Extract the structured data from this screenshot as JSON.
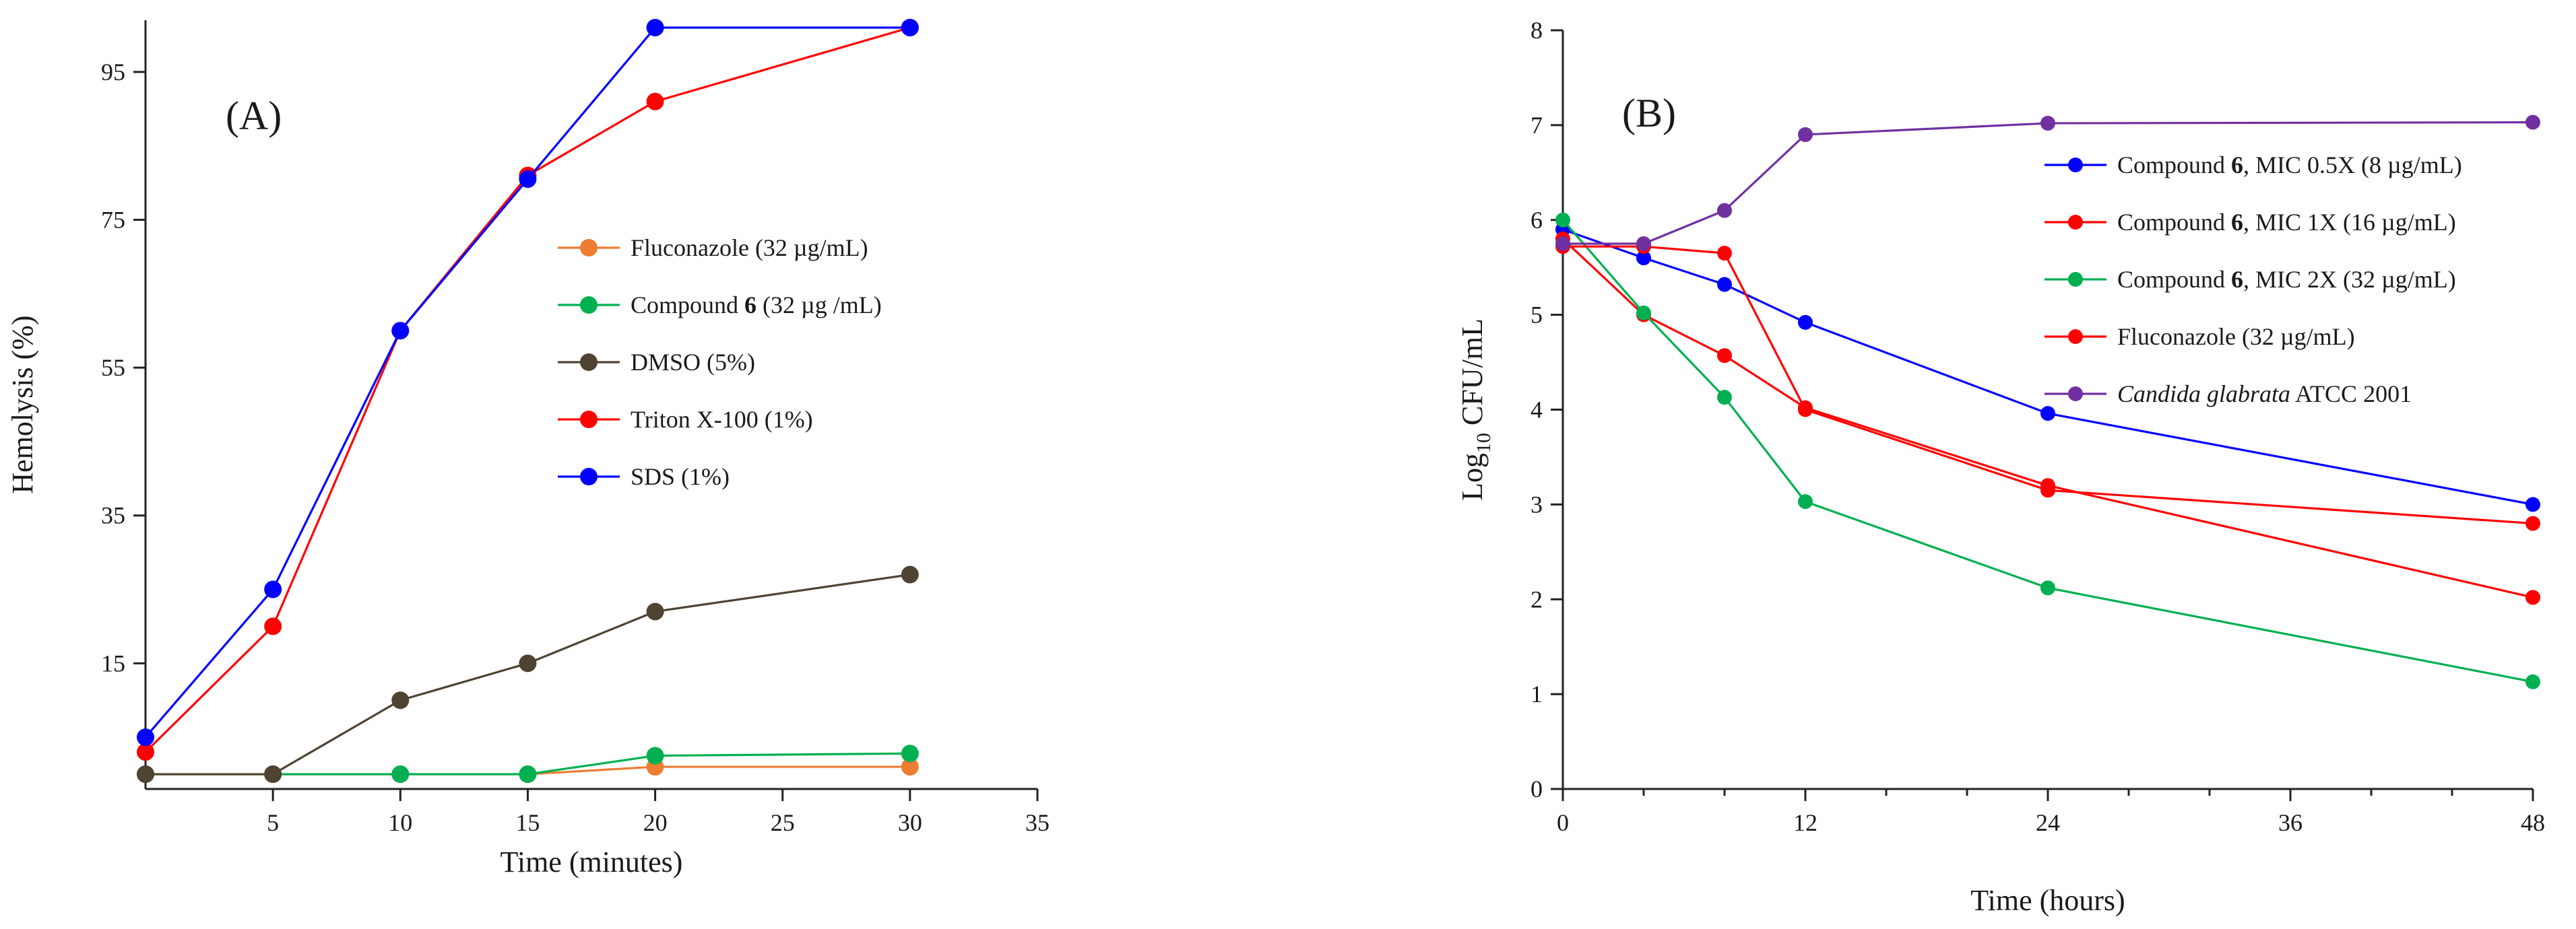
{
  "chart_data": [
    {
      "type": "line",
      "panel_label": "(A)",
      "xlabel": "Time (minutes)",
      "ylabel": "Hemolysis (%)",
      "xlim": [
        0,
        35
      ],
      "ylim": [
        -2,
        102
      ],
      "x_ticks": [
        5,
        10,
        15,
        20,
        25,
        30,
        35
      ],
      "y_ticks": [
        15,
        35,
        55,
        75,
        95
      ],
      "legend_position": "center-right",
      "series": [
        {
          "name": "Fluconazole (32 µg/mL)",
          "name_parts": [
            "Fluconazole (32 µg/mL)"
          ],
          "color": "#ED7D31",
          "x": [
            0,
            5,
            10,
            15,
            20,
            30
          ],
          "y": [
            0,
            0,
            0,
            0,
            1,
            1
          ]
        },
        {
          "name": "Compound 6 (32 µg /mL)",
          "name_parts": [
            "Compound ",
            "6",
            " (32 µg /mL)"
          ],
          "color": "#00B050",
          "x": [
            0,
            5,
            10,
            15,
            20,
            30
          ],
          "y": [
            0,
            0,
            0,
            0,
            2.5,
            2.8
          ]
        },
        {
          "name": "DMSO (5%)",
          "name_parts": [
            "DMSO (5%)"
          ],
          "color": "#4F4332",
          "x": [
            0,
            5,
            10,
            15,
            20,
            30
          ],
          "y": [
            0,
            0,
            10,
            15,
            22,
            27
          ]
        },
        {
          "name": "Triton X-100 (1%)",
          "name_parts": [
            "Triton X-100 (1%)"
          ],
          "color": "#FF0000",
          "x": [
            0,
            5,
            10,
            15,
            20,
            30
          ],
          "y": [
            3,
            20,
            60,
            81,
            91,
            101
          ]
        },
        {
          "name": "SDS (1%)",
          "name_parts": [
            "SDS (1%)"
          ],
          "color": "#0000FF",
          "x": [
            0,
            5,
            10,
            15,
            20,
            30
          ],
          "y": [
            5,
            25,
            60,
            80.5,
            101,
            101
          ]
        }
      ]
    },
    {
      "type": "line",
      "panel_label": "(B)",
      "xlabel": "Time (hours)",
      "ylabel_parts": [
        "Log",
        "10",
        "  CFU/mL"
      ],
      "xlim": [
        0,
        48
      ],
      "ylim": [
        0,
        8
      ],
      "x_ticks": [
        0,
        12,
        24,
        36,
        48
      ],
      "y_ticks": [
        0,
        1,
        2,
        3,
        4,
        5,
        6,
        7,
        8
      ],
      "legend_position": "top-right",
      "series": [
        {
          "name": "Compound 6, MIC 0.5X (8 µg/mL)",
          "name_parts": [
            "Compound ",
            "6",
            ", MIC  0.5X (8 µg/mL)"
          ],
          "color": "#0000FF",
          "x": [
            0,
            4,
            8,
            12,
            24,
            48
          ],
          "y": [
            5.9,
            5.6,
            5.32,
            4.92,
            3.96,
            3.0
          ]
        },
        {
          "name": "Compound 6, MIC 1X (16 µg/mL)",
          "name_parts": [
            "Compound ",
            "6",
            ", MIC  1X (16 µg/mL)"
          ],
          "color": "#FF0000",
          "x": [
            0,
            4,
            8,
            12,
            24,
            48
          ],
          "y": [
            5.8,
            5.0,
            4.57,
            4.02,
            3.2,
            2.02
          ]
        },
        {
          "name": "Compound 6, MIC 2X (32 µg/mL)",
          "name_parts": [
            "Compound ",
            "6",
            ", MIC  2X (32 µg/mL)"
          ],
          "color": "#00B050",
          "x": [
            0,
            4,
            8,
            12,
            24,
            48
          ],
          "y": [
            6.0,
            5.02,
            4.13,
            3.03,
            2.12,
            1.13
          ]
        },
        {
          "name": "Fluconazole (32 µg/mL)",
          "name_parts": [
            "Fluconazole (32 µg/mL)"
          ],
          "color": "#FF0000",
          "x": [
            0,
            4,
            8,
            12,
            24,
            48
          ],
          "y": [
            5.72,
            5.72,
            5.65,
            4.0,
            3.15,
            2.8
          ]
        },
        {
          "name": "Candida glabrata ATCC 2001",
          "name_parts": [
            "Candida glabrata",
            " ATCC 2001"
          ],
          "color": "#7030A0",
          "x": [
            0,
            4,
            8,
            12,
            24,
            48
          ],
          "y": [
            5.75,
            5.75,
            6.1,
            6.9,
            7.02,
            7.03
          ]
        }
      ]
    }
  ]
}
